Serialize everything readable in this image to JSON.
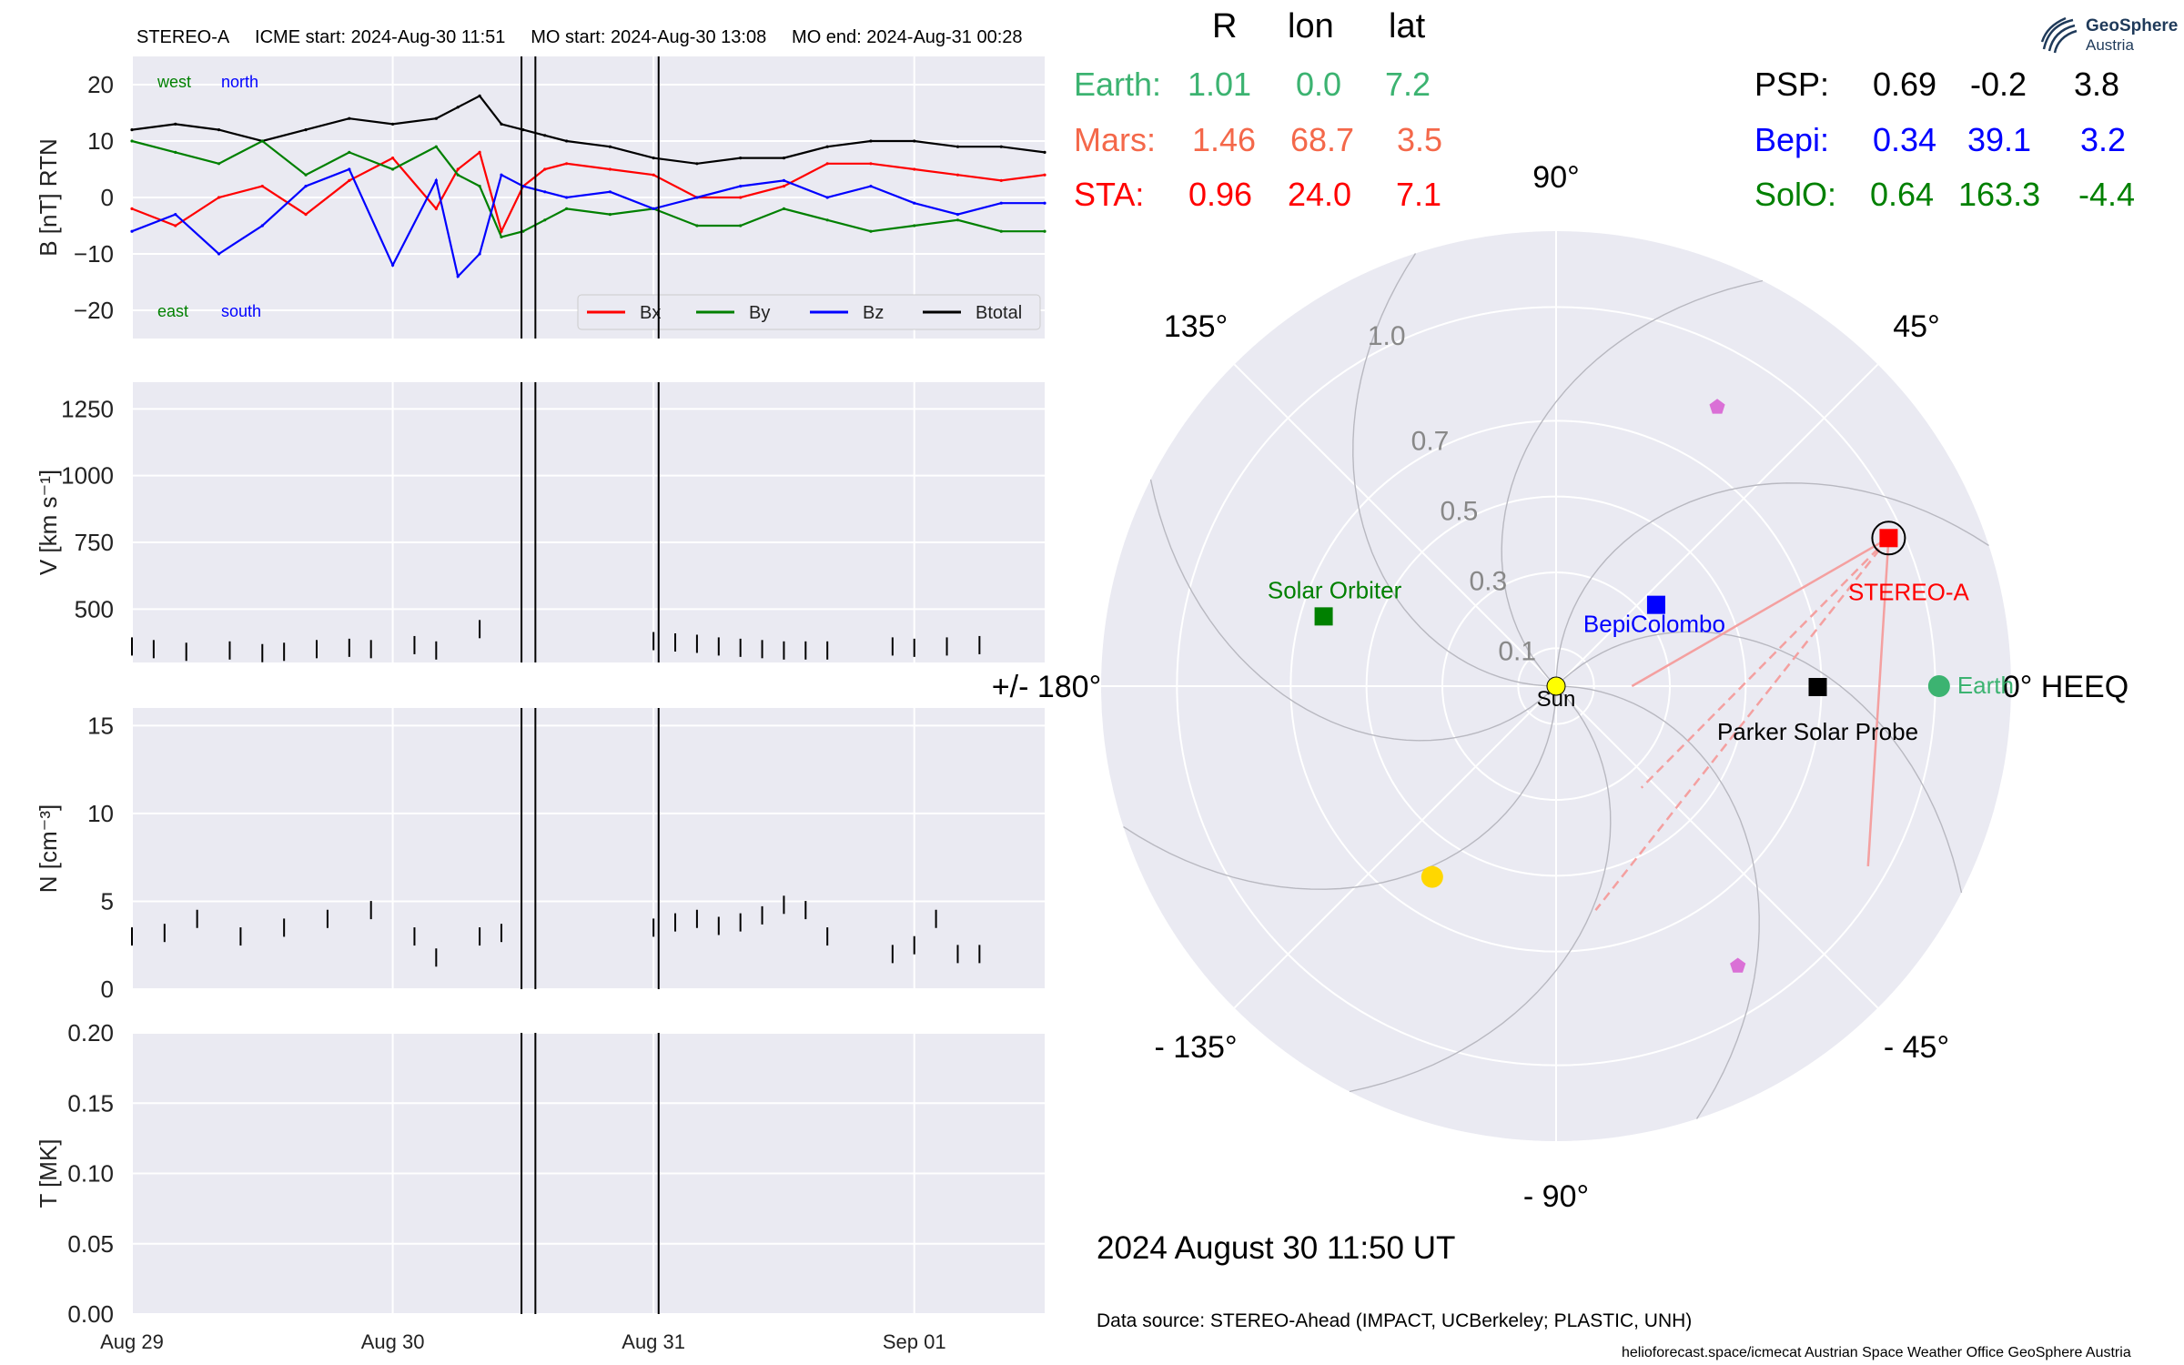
{
  "header": {
    "spacecraft": "STEREO-A",
    "icme_start": "ICME start: 2024-Aug-30 11:51",
    "mo_start": "MO start: 2024-Aug-30 13:08",
    "mo_end": "MO end: 2024-Aug-31 00:28"
  },
  "positions": {
    "columns": [
      "R",
      "lon",
      "lat"
    ],
    "rows": [
      {
        "name": "Earth:",
        "R": "1.01",
        "lon": "0.0",
        "lat": "7.2",
        "color": "#3cb371"
      },
      {
        "name": "Mars:",
        "R": "1.46",
        "lon": "68.7",
        "lat": "3.5",
        "color": "#f4684a"
      },
      {
        "name": "STA:",
        "R": "0.96",
        "lon": "24.0",
        "lat": "7.1",
        "color": "#ff0000"
      },
      {
        "name": "PSP:",
        "R": "0.69",
        "lon": "-0.2",
        "lat": "3.8",
        "color": "#000000"
      },
      {
        "name": "Bepi:",
        "R": "0.34",
        "lon": "39.1",
        "lat": "3.2",
        "color": "#0000ff"
      },
      {
        "name": "SolO:",
        "R": "0.64",
        "lon": "163.3",
        "lat": "-4.4",
        "color": "#008000"
      }
    ]
  },
  "logo": {
    "name": "GeoSphere",
    "sub": "Austria"
  },
  "footer": {
    "date": "2024 August 30  11:50 UT",
    "source": "Data source: STEREO-Ahead (IMPACT, UCBerkeley; PLASTIC, UNH)",
    "credit": "helioforecast.space/icmecat   Austrian Space Weather Office   GeoSphere Austria"
  },
  "colors": {
    "bx": "#ff0000",
    "by": "#008000",
    "bz": "#0000ff",
    "btotal": "#000000",
    "panel_bg": "#eaeaf2"
  },
  "chart_data": [
    {
      "type": "line",
      "ylabel": "B [nT] RTN",
      "ylim": [
        -25,
        25
      ],
      "yticks": [
        "20",
        "10",
        "0",
        "−10",
        "−20"
      ],
      "yticks_values": [
        20,
        10,
        0,
        -10,
        -20
      ],
      "annotations": {
        "top_left": "west",
        "top_right": "north",
        "bottom_left": "east",
        "bottom_right": "south"
      },
      "legend": [
        "Bx",
        "By",
        "Bz",
        "Btotal"
      ],
      "legend_placement": "lower-right",
      "x_hours": [
        0,
        4,
        8,
        12,
        16,
        20,
        24,
        28,
        30,
        32,
        34,
        36,
        38,
        40,
        44,
        48,
        52,
        56,
        60,
        64,
        68,
        72,
        76,
        80,
        84
      ],
      "series": [
        {
          "name": "Btotal",
          "values": [
            12,
            13,
            12,
            10,
            12,
            14,
            13,
            14,
            16,
            18,
            13,
            12,
            11,
            10,
            9,
            7,
            6,
            7,
            7,
            9,
            10,
            10,
            9,
            9,
            8
          ]
        },
        {
          "name": "Bx",
          "values": [
            -2,
            -5,
            0,
            2,
            -3,
            3,
            7,
            -2,
            5,
            8,
            -6,
            2,
            5,
            6,
            5,
            4,
            0,
            0,
            2,
            6,
            6,
            5,
            4,
            3,
            4
          ]
        },
        {
          "name": "By",
          "values": [
            10,
            8,
            6,
            10,
            4,
            8,
            5,
            9,
            4,
            2,
            -7,
            -6,
            -4,
            -2,
            -3,
            -2,
            -5,
            -5,
            -2,
            -4,
            -6,
            -5,
            -4,
            -6,
            -6
          ]
        },
        {
          "name": "Bz",
          "values": [
            -6,
            -3,
            -10,
            -5,
            2,
            5,
            -12,
            3,
            -14,
            -10,
            4,
            2,
            1,
            0,
            1,
            -2,
            0,
            2,
            3,
            0,
            2,
            -1,
            -3,
            -1,
            -1
          ]
        }
      ]
    },
    {
      "type": "line",
      "ylabel": "V [km s⁻¹]",
      "ylim": [
        300,
        1350
      ],
      "yticks": [
        "1250",
        "1000",
        "750",
        "500"
      ],
      "yticks_values": [
        1250,
        1000,
        750,
        500
      ],
      "x_hours": [
        0,
        2,
        5,
        9,
        12,
        14,
        17,
        20,
        22,
        26,
        28,
        32,
        48,
        50,
        52,
        54,
        56,
        58,
        60,
        62,
        64,
        70,
        72,
        75,
        78
      ],
      "values": [
        360,
        350,
        340,
        345,
        335,
        340,
        350,
        355,
        350,
        365,
        345,
        425,
        380,
        375,
        370,
        360,
        355,
        350,
        345,
        345,
        345,
        360,
        355,
        360,
        365
      ]
    },
    {
      "type": "line",
      "ylabel": "N [cm⁻³]",
      "ylim": [
        0,
        16
      ],
      "yticks": [
        "15",
        "10",
        "5",
        "0"
      ],
      "yticks_values": [
        15,
        10,
        5,
        0
      ],
      "x_hours": [
        0,
        3,
        6,
        10,
        14,
        18,
        22,
        26,
        28,
        32,
        34,
        48,
        50,
        52,
        54,
        56,
        58,
        60,
        62,
        64,
        70,
        72,
        74,
        76,
        78
      ],
      "values": [
        3,
        3.2,
        4,
        3,
        3.5,
        4,
        4.5,
        3,
        1.8,
        3,
        3.2,
        3.5,
        3.8,
        4,
        3.6,
        3.8,
        4.2,
        4.8,
        4.5,
        3,
        2,
        2.5,
        4,
        2,
        2
      ]
    },
    {
      "type": "line",
      "ylabel": "T [MK]",
      "ylim": [
        0,
        0.2
      ],
      "yticks": [
        "0.20",
        "0.15",
        "0.10",
        "0.05",
        "0.00"
      ],
      "yticks_values": [
        0.2,
        0.15,
        0.1,
        0.05,
        0.0
      ],
      "x_hours": [],
      "values": []
    },
    {
      "type": "scatter",
      "name": "polar HEEQ position plot",
      "angle_labels": [
        {
          "text": "0° HEEQ",
          "deg": 0
        },
        {
          "text": "45°",
          "deg": 45
        },
        {
          "text": "90°",
          "deg": 90
        },
        {
          "text": "135°",
          "deg": 135
        },
        {
          "text": "+/- 180°",
          "deg": 180
        },
        {
          "text": "- 135°",
          "deg": 225
        },
        {
          "text": "- 90°",
          "deg": 270
        },
        {
          "text": "- 45°",
          "deg": 315
        }
      ],
      "radial_ticks": [
        "0.1",
        "0.3",
        "0.5",
        "0.7",
        "1.0"
      ],
      "radial_values": [
        0.1,
        0.3,
        0.5,
        0.7,
        1.0
      ],
      "rlim": [
        0,
        1.2
      ],
      "objects": [
        {
          "label": "Sun",
          "r": 0,
          "lon": 0,
          "color": "#ffff00",
          "marker": "circle"
        },
        {
          "label": "Earth",
          "r": 1.01,
          "lon": 0.0,
          "color": "#3cb371",
          "marker": "circle"
        },
        {
          "label": "STEREO-A",
          "r": 0.96,
          "lon": 24.0,
          "color": "#ff0000",
          "marker": "square"
        },
        {
          "label": "Parker Solar Probe",
          "r": 0.69,
          "lon": -0.2,
          "color": "#000000",
          "marker": "square"
        },
        {
          "label": "BepiColombo",
          "r": 0.34,
          "lon": 39.1,
          "color": "#0000ff",
          "marker": "square"
        },
        {
          "label": "Solar Orbiter",
          "r": 0.64,
          "lon": 163.3,
          "color": "#008000",
          "marker": "square"
        },
        {
          "label": "",
          "r": 0.6,
          "lon": 237.0,
          "color": "#ffd700",
          "marker": "circle"
        },
        {
          "label": "",
          "r": 0.85,
          "lon": 60.0,
          "color": "#da70d6",
          "marker": "pentagon"
        },
        {
          "label": "",
          "r": 0.88,
          "lon": -57.0,
          "color": "#da70d6",
          "marker": "pentagon"
        }
      ]
    }
  ],
  "xaxis": {
    "ticks": [
      {
        "label": "Aug 29",
        "hour": 0
      },
      {
        "label": "Aug 30",
        "hour": 24
      },
      {
        "label": "Aug 31",
        "hour": 48
      },
      {
        "label": "Sep 01",
        "hour": 72
      }
    ],
    "range_hours": [
      0,
      84
    ],
    "event_lines_hours": [
      35.85,
      37.13,
      48.47
    ]
  }
}
